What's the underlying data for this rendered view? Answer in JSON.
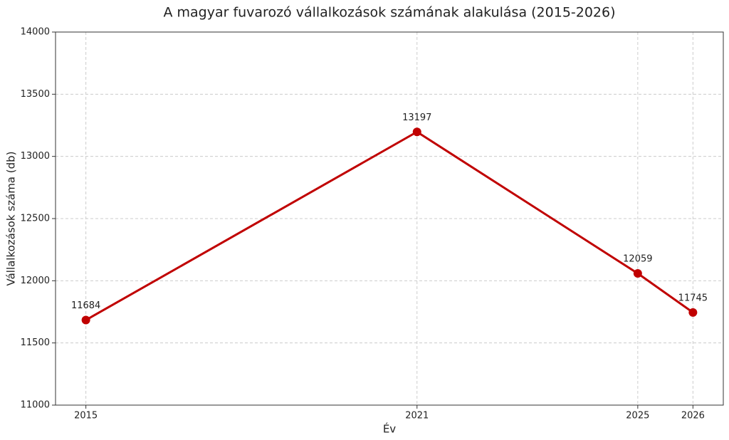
{
  "chart_data": {
    "type": "line",
    "title": "A magyar fuvarozó vállalkozások számának alakulása (2015-2026)",
    "x_label": "Év",
    "y_label": "Vállalkozások száma (db)",
    "x": [
      2015,
      2021,
      2025,
      2026
    ],
    "values": [
      11684,
      13197,
      12059,
      11745
    ],
    "color": "#c00000",
    "xlim": [
      2014.45,
      2026.55
    ],
    "xticks": [
      2015,
      2021,
      2025,
      2026
    ],
    "ylim": [
      11000,
      14000
    ],
    "yticks": [
      11000,
      11500,
      12000,
      12500,
      13000,
      13500,
      14000
    ],
    "grid": true
  }
}
